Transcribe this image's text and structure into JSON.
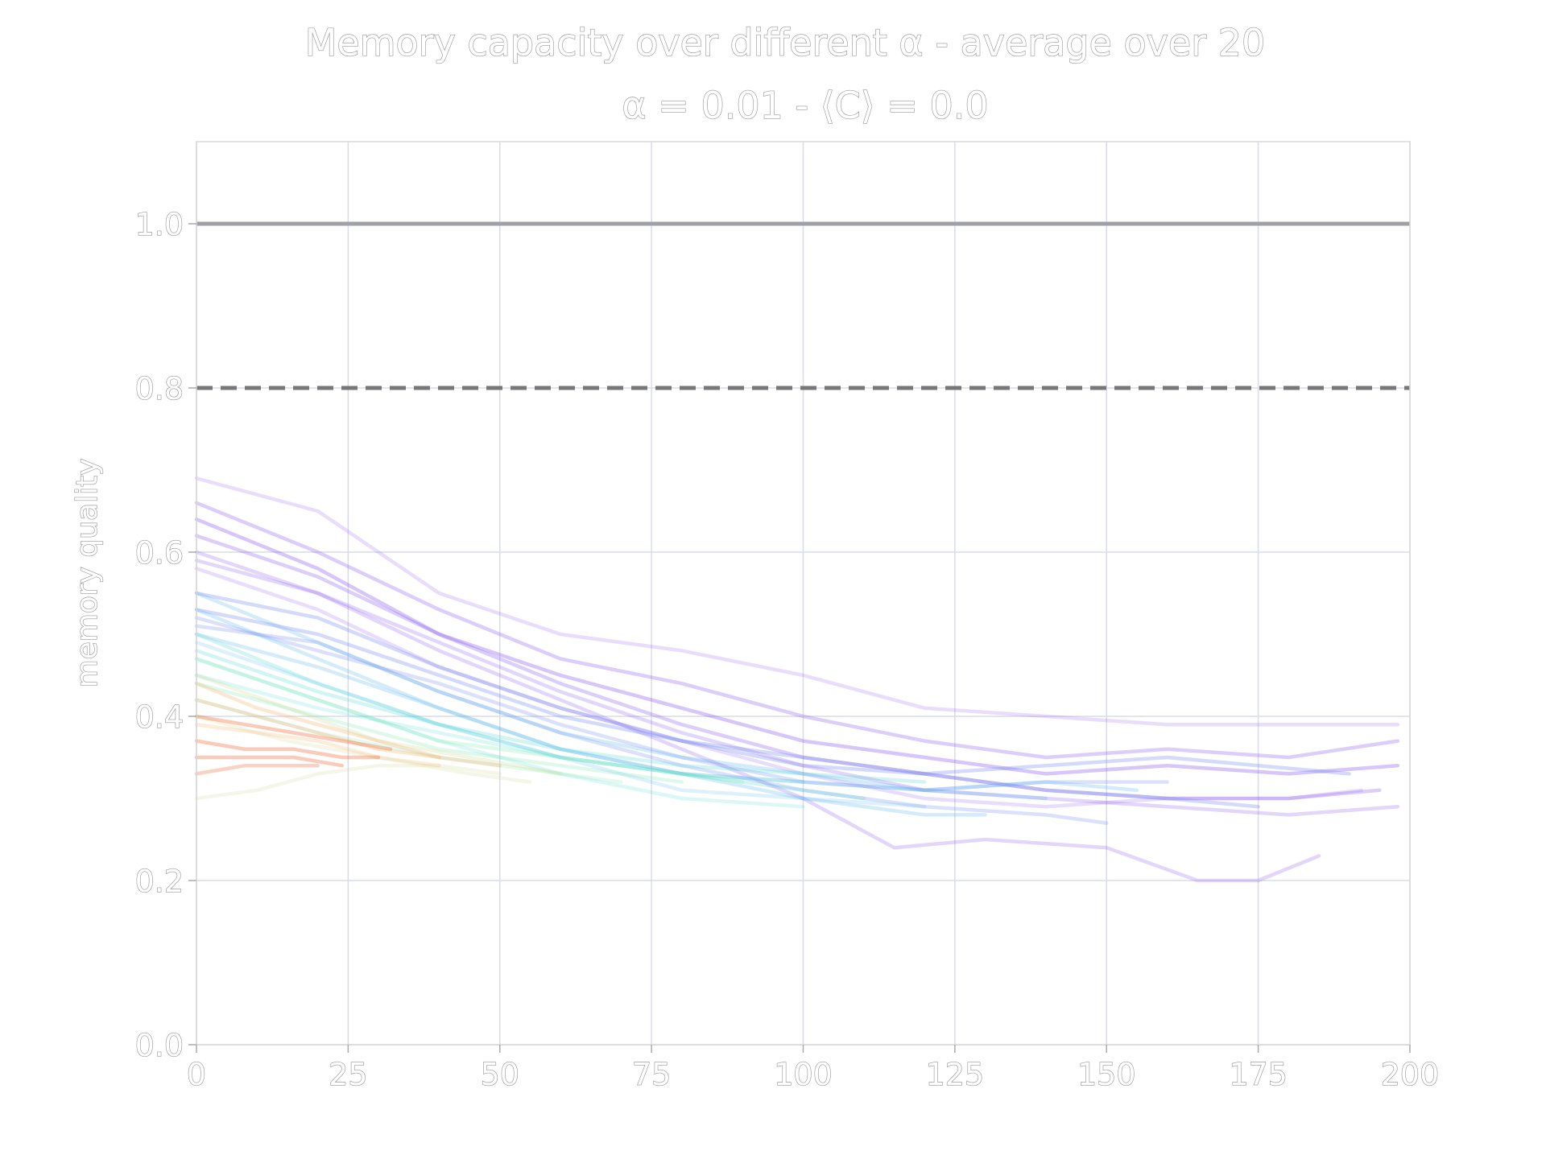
{
  "chart_data": {
    "type": "line",
    "title": "Memory capacity over different α - average over 20",
    "subtitle": "α = 0.01 - ⟨C⟩ = 0.0",
    "xlabel": "",
    "ylabel": "memory quality",
    "xlim": [
      0,
      200
    ],
    "ylim": [
      0,
      1.1
    ],
    "x_ticks": [
      "0",
      "25",
      "50",
      "75",
      "100",
      "125",
      "150",
      "175",
      "200"
    ],
    "y_ticks": [
      "0.0",
      "0.2",
      "0.4",
      "0.6",
      "0.8",
      "1.0"
    ],
    "grid": true,
    "reference_lines": [
      {
        "y": 1.0,
        "style": "solid",
        "color": "#a0a0a8"
      },
      {
        "y": 0.8,
        "style": "dashed",
        "color": "#777777"
      }
    ],
    "colors": {
      "grid": "#d9dbe9",
      "frame": "#d8d8d8",
      "text_outline": "#9a9a9a",
      "palette": [
        "#8a5cf0",
        "#6f86ee",
        "#53b3ec",
        "#4cd8d2",
        "#7be6b0",
        "#c6d98d",
        "#f2b46b",
        "#f06a3a"
      ]
    },
    "series": [
      {
        "color_index": 0,
        "alpha": 0.2,
        "x": [
          0,
          20,
          40,
          60,
          80,
          100,
          120,
          140,
          160,
          180,
          198
        ],
        "y": [
          0.69,
          0.65,
          0.55,
          0.5,
          0.48,
          0.45,
          0.41,
          0.4,
          0.39,
          0.39,
          0.39
        ]
      },
      {
        "color_index": 0,
        "alpha": 0.3,
        "x": [
          0,
          20,
          40,
          60,
          80,
          100,
          120,
          140,
          160,
          180,
          198
        ],
        "y": [
          0.66,
          0.6,
          0.53,
          0.47,
          0.44,
          0.4,
          0.37,
          0.35,
          0.36,
          0.35,
          0.37
        ]
      },
      {
        "color_index": 0,
        "alpha": 0.35,
        "x": [
          0,
          20,
          40,
          60,
          80,
          100,
          120,
          140,
          160,
          180,
          198
        ],
        "y": [
          0.64,
          0.58,
          0.5,
          0.45,
          0.41,
          0.37,
          0.35,
          0.33,
          0.34,
          0.33,
          0.34
        ]
      },
      {
        "color_index": 0,
        "alpha": 0.3,
        "x": [
          0,
          20,
          40,
          60,
          80,
          100,
          120,
          140,
          160,
          180,
          195
        ],
        "y": [
          0.62,
          0.57,
          0.5,
          0.44,
          0.39,
          0.35,
          0.33,
          0.31,
          0.3,
          0.3,
          0.31
        ]
      },
      {
        "color_index": 0,
        "alpha": 0.25,
        "x": [
          0,
          20,
          40,
          60,
          80,
          100,
          120,
          140,
          160,
          180,
          198
        ],
        "y": [
          0.6,
          0.55,
          0.49,
          0.43,
          0.38,
          0.34,
          0.31,
          0.3,
          0.29,
          0.28,
          0.29
        ]
      },
      {
        "color_index": 0,
        "alpha": 0.25,
        "x": [
          0,
          20,
          40,
          60,
          80,
          100,
          115,
          130,
          150,
          165,
          175,
          185
        ],
        "y": [
          0.59,
          0.55,
          0.48,
          0.42,
          0.36,
          0.3,
          0.24,
          0.25,
          0.24,
          0.2,
          0.2,
          0.23
        ]
      },
      {
        "color_index": 0,
        "alpha": 0.2,
        "x": [
          0,
          20,
          40,
          60,
          80,
          100,
          120,
          140,
          160,
          180,
          192
        ],
        "y": [
          0.58,
          0.53,
          0.46,
          0.41,
          0.37,
          0.33,
          0.3,
          0.29,
          0.3,
          0.3,
          0.31
        ]
      },
      {
        "color_index": 1,
        "alpha": 0.3,
        "x": [
          0,
          20,
          40,
          60,
          80,
          100,
          120,
          140,
          160,
          175
        ],
        "y": [
          0.55,
          0.52,
          0.46,
          0.41,
          0.37,
          0.35,
          0.33,
          0.31,
          0.3,
          0.29
        ]
      },
      {
        "color_index": 1,
        "alpha": 0.3,
        "x": [
          0,
          20,
          40,
          60,
          80,
          100,
          120,
          140,
          160,
          190
        ],
        "y": [
          0.53,
          0.5,
          0.45,
          0.4,
          0.37,
          0.34,
          0.33,
          0.34,
          0.35,
          0.33
        ]
      },
      {
        "color_index": 1,
        "alpha": 0.25,
        "x": [
          0,
          20,
          40,
          60,
          80,
          100,
          120,
          140,
          160
        ],
        "y": [
          0.52,
          0.48,
          0.44,
          0.39,
          0.35,
          0.32,
          0.31,
          0.32,
          0.32
        ]
      },
      {
        "color_index": 1,
        "alpha": 0.25,
        "x": [
          0,
          20,
          40,
          60,
          80,
          100,
          120,
          140,
          150
        ],
        "y": [
          0.51,
          0.49,
          0.43,
          0.38,
          0.34,
          0.31,
          0.29,
          0.28,
          0.27
        ]
      },
      {
        "color_index": 2,
        "alpha": 0.25,
        "x": [
          0,
          20,
          40,
          60,
          80,
          100,
          120,
          140
        ],
        "y": [
          0.55,
          0.49,
          0.43,
          0.38,
          0.35,
          0.33,
          0.31,
          0.3
        ]
      },
      {
        "color_index": 2,
        "alpha": 0.25,
        "x": [
          0,
          20,
          40,
          60,
          80,
          100,
          120,
          140,
          155
        ],
        "y": [
          0.53,
          0.47,
          0.41,
          0.36,
          0.33,
          0.32,
          0.31,
          0.32,
          0.31
        ]
      },
      {
        "color_index": 2,
        "alpha": 0.25,
        "x": [
          0,
          20,
          40,
          60,
          80,
          100,
          120,
          130
        ],
        "y": [
          0.5,
          0.46,
          0.41,
          0.36,
          0.33,
          0.3,
          0.28,
          0.28
        ]
      },
      {
        "color_index": 2,
        "alpha": 0.2,
        "x": [
          0,
          20,
          40,
          60,
          80,
          100,
          120
        ],
        "y": [
          0.49,
          0.44,
          0.39,
          0.35,
          0.31,
          0.3,
          0.29
        ]
      },
      {
        "color_index": 3,
        "alpha": 0.25,
        "x": [
          0,
          20,
          40,
          60,
          80,
          100,
          120
        ],
        "y": [
          0.5,
          0.44,
          0.39,
          0.36,
          0.34,
          0.33,
          0.32
        ]
      },
      {
        "color_index": 3,
        "alpha": 0.25,
        "x": [
          0,
          20,
          40,
          60,
          80,
          100,
          110
        ],
        "y": [
          0.48,
          0.43,
          0.39,
          0.35,
          0.33,
          0.31,
          0.3
        ]
      },
      {
        "color_index": 3,
        "alpha": 0.2,
        "x": [
          0,
          20,
          40,
          60,
          80,
          100
        ],
        "y": [
          0.47,
          0.42,
          0.37,
          0.33,
          0.3,
          0.29
        ]
      },
      {
        "color_index": 3,
        "alpha": 0.2,
        "x": [
          0,
          20,
          40,
          60,
          80,
          100
        ],
        "y": [
          0.45,
          0.41,
          0.38,
          0.35,
          0.33,
          0.32
        ]
      },
      {
        "color_index": 4,
        "alpha": 0.25,
        "x": [
          0,
          20,
          40,
          60,
          80,
          90
        ],
        "y": [
          0.47,
          0.42,
          0.37,
          0.35,
          0.33,
          0.32
        ]
      },
      {
        "color_index": 4,
        "alpha": 0.25,
        "x": [
          0,
          20,
          40,
          60,
          80
        ],
        "y": [
          0.44,
          0.4,
          0.36,
          0.34,
          0.32
        ]
      },
      {
        "color_index": 4,
        "alpha": 0.2,
        "x": [
          0,
          20,
          40,
          60,
          70
        ],
        "y": [
          0.42,
          0.38,
          0.35,
          0.33,
          0.32
        ]
      },
      {
        "color_index": 5,
        "alpha": 0.25,
        "x": [
          0,
          15,
          30,
          45,
          60
        ],
        "y": [
          0.45,
          0.41,
          0.37,
          0.35,
          0.33
        ]
      },
      {
        "color_index": 5,
        "alpha": 0.2,
        "x": [
          0,
          15,
          30,
          45,
          55
        ],
        "y": [
          0.4,
          0.37,
          0.35,
          0.33,
          0.32
        ]
      },
      {
        "color_index": 5,
        "alpha": 0.2,
        "x": [
          0,
          10,
          20,
          30,
          40,
          50
        ],
        "y": [
          0.3,
          0.31,
          0.33,
          0.34,
          0.34,
          0.33
        ]
      },
      {
        "color_index": 6,
        "alpha": 0.3,
        "x": [
          0,
          10,
          20,
          30,
          40,
          50
        ],
        "y": [
          0.44,
          0.41,
          0.39,
          0.37,
          0.35,
          0.34
        ]
      },
      {
        "color_index": 6,
        "alpha": 0.3,
        "x": [
          0,
          10,
          20,
          30,
          40
        ],
        "y": [
          0.42,
          0.4,
          0.38,
          0.36,
          0.35
        ]
      },
      {
        "color_index": 6,
        "alpha": 0.25,
        "x": [
          0,
          10,
          20,
          30,
          40
        ],
        "y": [
          0.39,
          0.38,
          0.37,
          0.35,
          0.34
        ]
      },
      {
        "color_index": 7,
        "alpha": 0.35,
        "x": [
          0,
          8,
          16,
          24,
          32
        ],
        "y": [
          0.4,
          0.39,
          0.38,
          0.37,
          0.36
        ]
      },
      {
        "color_index": 7,
        "alpha": 0.35,
        "x": [
          0,
          8,
          16,
          24,
          30
        ],
        "y": [
          0.37,
          0.36,
          0.36,
          0.35,
          0.35
        ]
      },
      {
        "color_index": 7,
        "alpha": 0.35,
        "x": [
          0,
          8,
          16,
          24
        ],
        "y": [
          0.35,
          0.35,
          0.35,
          0.34
        ]
      },
      {
        "color_index": 7,
        "alpha": 0.3,
        "x": [
          0,
          8,
          16,
          20
        ],
        "y": [
          0.33,
          0.34,
          0.34,
          0.34
        ]
      }
    ]
  }
}
